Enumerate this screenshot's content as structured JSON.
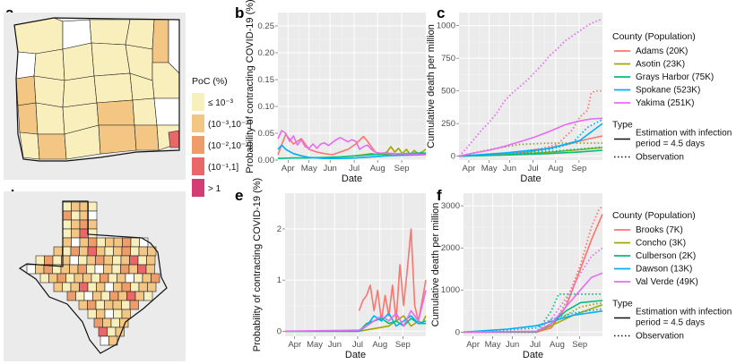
{
  "figure": {
    "panel_labels": [
      "a",
      "b",
      "c",
      "d",
      "e",
      "f"
    ],
    "map_legend": {
      "title": "PoC (%)",
      "items": [
        {
          "label": "≤ 10⁻³",
          "color": "#f9efbd"
        },
        {
          "label": "(10⁻³,10⁻²]",
          "color": "#f3c783"
        },
        {
          "label": "(10⁻²,10⁻¹]",
          "color": "#ef9c6b"
        },
        {
          "label": "(10⁻¹,1]",
          "color": "#ea6769"
        },
        {
          "label": "> 1",
          "color": "#d43c75"
        }
      ]
    },
    "legend_top": {
      "title": "County (Population)",
      "items": [
        {
          "label": "Adams (20K)",
          "color": "#f8766d"
        },
        {
          "label": "Asotin (23K)",
          "color": "#a3a500"
        },
        {
          "label": "Grays Harbor (75K)",
          "color": "#00bf7d"
        },
        {
          "label": "Spokane (523K)",
          "color": "#00b0f6"
        },
        {
          "label": "Yakima (251K)",
          "color": "#e76bf3"
        }
      ],
      "type_title": "Type",
      "type_items": [
        "Estimation with infection",
        "period = 4.5 days",
        "Observation"
      ]
    },
    "legend_bottom": {
      "title": "County (Population)",
      "items": [
        {
          "label": "Brooks (7K)",
          "color": "#f8766d"
        },
        {
          "label": "Concho (3K)",
          "color": "#a3a500"
        },
        {
          "label": "Culberson (2K)",
          "color": "#00bf7d"
        },
        {
          "label": "Dawson (13K)",
          "color": "#00b0f6"
        },
        {
          "label": "Val Verde (49K)",
          "color": "#e76bf3"
        }
      ],
      "type_title": "Type",
      "type_items": [
        "Estimation with infection",
        "period = 4.5 days",
        "Observation"
      ]
    }
  },
  "chart_data": [
    {
      "panel": "b",
      "type": "line",
      "xlabel": "Date",
      "ylabel": "Probability of contracting COVID-19 (%)",
      "x_ticks": [
        "Apr",
        "May",
        "Jun",
        "Jul",
        "Aug",
        "Sep"
      ],
      "y_ticks": [
        "0.00",
        "0.05",
        "0.10",
        "0.15",
        "0.20",
        "0.25"
      ],
      "y_tick_values": [
        0,
        0.05,
        0.1,
        0.15,
        0.2,
        0.25
      ],
      "xlim": [
        0,
        190
      ],
      "ylim": [
        0,
        0.275
      ],
      "series": [
        {
          "name": "Adams (20K)",
          "color": "#f8766d",
          "style": "solid",
          "x": [
            0,
            10,
            20,
            30,
            40,
            50,
            60,
            70,
            80,
            90,
            100,
            110,
            115,
            120,
            125,
            130,
            135,
            140,
            150,
            160,
            170,
            180,
            190
          ],
          "y": [
            0.01,
            0.048,
            0.03,
            0.04,
            0.02,
            0.015,
            0.012,
            0.01,
            0.015,
            0.02,
            0.03,
            0.044,
            0.035,
            0.025,
            0.015,
            0.012,
            0.01,
            0.01,
            0.012,
            0.01,
            0.01,
            0.012,
            0.012
          ]
        },
        {
          "name": "Asotin (23K)",
          "color": "#a3a500",
          "style": "solid",
          "x": [
            100,
            110,
            120,
            130,
            140,
            145,
            150,
            155,
            160,
            165,
            170,
            175,
            180,
            185,
            190
          ],
          "y": [
            0.008,
            0.01,
            0.012,
            0.01,
            0.015,
            0.025,
            0.015,
            0.022,
            0.012,
            0.02,
            0.01,
            0.018,
            0.012,
            0.015,
            0.02
          ]
        },
        {
          "name": "Grays Harbor (75K)",
          "color": "#00bf7d",
          "style": "solid",
          "x": [
            0,
            20,
            40,
            60,
            80,
            100,
            120,
            140,
            160,
            180,
            190
          ],
          "y": [
            0.003,
            0.004,
            0.004,
            0.005,
            0.006,
            0.008,
            0.01,
            0.012,
            0.012,
            0.013,
            0.013
          ]
        },
        {
          "name": "Spokane (523K)",
          "color": "#00b0f6",
          "style": "solid",
          "x": [
            0,
            5,
            10,
            20,
            30,
            40,
            50,
            60,
            80,
            100,
            120,
            140,
            160,
            190
          ],
          "y": [
            0.02,
            0.028,
            0.02,
            0.012,
            0.008,
            0.005,
            0.004,
            0.003,
            0.003,
            0.004,
            0.006,
            0.008,
            0.009,
            0.01
          ]
        },
        {
          "name": "Yakima (251K)",
          "color": "#e76bf3",
          "style": "solid",
          "x": [
            0,
            5,
            10,
            15,
            20,
            25,
            30,
            35,
            40,
            45,
            50,
            55,
            60,
            65,
            70,
            75,
            80,
            85,
            90,
            95,
            100,
            105,
            110,
            115,
            120,
            125,
            130,
            140,
            150,
            160,
            170,
            180,
            190
          ],
          "y": [
            0.04,
            0.055,
            0.05,
            0.035,
            0.045,
            0.028,
            0.038,
            0.025,
            0.022,
            0.03,
            0.022,
            0.03,
            0.032,
            0.027,
            0.033,
            0.038,
            0.042,
            0.038,
            0.034,
            0.038,
            0.035,
            0.02,
            0.025,
            0.028,
            0.02,
            0.015,
            0.013,
            0.013,
            0.012,
            0.012,
            0.011,
            0.011,
            0.01
          ]
        }
      ]
    },
    {
      "panel": "c",
      "type": "line",
      "xlabel": "Date",
      "ylabel": "Cumulative death per million",
      "x_ticks": [
        "Apr",
        "May",
        "Jun",
        "Jul",
        "Aug",
        "Sep"
      ],
      "y_ticks": [
        "0",
        "250",
        "500",
        "750",
        "1000"
      ],
      "y_tick_values": [
        0,
        250,
        500,
        750,
        1000
      ],
      "xlim": [
        0,
        190
      ],
      "ylim": [
        -30,
        1100
      ],
      "series": [
        {
          "name": "Adams (20K)",
          "color": "#f8766d",
          "style": "solid",
          "x": [
            0,
            30,
            60,
            90,
            110,
            130,
            150,
            170,
            190
          ],
          "y": [
            0,
            8,
            18,
            30,
            50,
            75,
            100,
            130,
            155
          ]
        },
        {
          "name": "Adams (20K)",
          "color": "#f8766d",
          "style": "dotted",
          "x": [
            0,
            30,
            60,
            90,
            110,
            130,
            150,
            160,
            170,
            175,
            180,
            190
          ],
          "y": [
            0,
            10,
            20,
            40,
            60,
            90,
            200,
            300,
            350,
            480,
            500,
            500
          ]
        },
        {
          "name": "Asotin (23K)",
          "color": "#a3a500",
          "style": "solid",
          "x": [
            0,
            60,
            120,
            160,
            190
          ],
          "y": [
            0,
            10,
            30,
            50,
            65
          ]
        },
        {
          "name": "Asotin (23K)",
          "color": "#a3a500",
          "style": "dotted",
          "x": [
            0,
            40,
            80,
            120,
            160,
            190
          ],
          "y": [
            0,
            50,
            90,
            100,
            100,
            100
          ]
        },
        {
          "name": "Grays Harbor (75K)",
          "color": "#00bf7d",
          "style": "solid",
          "x": [
            0,
            60,
            120,
            160,
            190
          ],
          "y": [
            0,
            8,
            20,
            32,
            45
          ]
        },
        {
          "name": "Grays Harbor (75K)",
          "color": "#00bf7d",
          "style": "dotted",
          "x": [
            0,
            60,
            120,
            160,
            190
          ],
          "y": [
            0,
            15,
            35,
            55,
            70
          ]
        },
        {
          "name": "Spokane (523K)",
          "color": "#00b0f6",
          "style": "solid",
          "x": [
            0,
            60,
            120,
            160,
            190
          ],
          "y": [
            0,
            25,
            60,
            120,
            250
          ]
        },
        {
          "name": "Spokane (523K)",
          "color": "#00b0f6",
          "style": "dotted",
          "x": [
            0,
            60,
            120,
            150,
            170,
            190
          ],
          "y": [
            0,
            20,
            50,
            100,
            220,
            280
          ]
        },
        {
          "name": "Yakima (251K)",
          "color": "#e76bf3",
          "style": "solid",
          "x": [
            0,
            20,
            40,
            60,
            80,
            100,
            120,
            140,
            160,
            175,
            190
          ],
          "y": [
            0,
            25,
            45,
            75,
            110,
            145,
            190,
            240,
            270,
            285,
            290
          ]
        },
        {
          "name": "Yakima (251K)",
          "color": "#e76bf3",
          "style": "dotted",
          "x": [
            0,
            10,
            20,
            30,
            40,
            50,
            60,
            70,
            80,
            90,
            100,
            110,
            120,
            130,
            140,
            150,
            160,
            170,
            180,
            190
          ],
          "y": [
            0,
            60,
            130,
            200,
            260,
            330,
            420,
            480,
            530,
            580,
            640,
            700,
            770,
            820,
            880,
            920,
            960,
            1000,
            1030,
            1050
          ]
        }
      ]
    },
    {
      "panel": "e",
      "type": "line",
      "xlabel": "Date",
      "ylabel": "Probability of contracting COVID-19 (%)",
      "x_ticks": [
        "Apr",
        "May",
        "Jun",
        "Jul",
        "Aug",
        "Sep"
      ],
      "y_ticks": [
        "0",
        "1",
        "2"
      ],
      "y_tick_values": [
        0,
        1,
        2
      ],
      "xlim": [
        0,
        190
      ],
      "ylim": [
        -0.1,
        2.7
      ],
      "series": [
        {
          "name": "Brooks (7K)",
          "color": "#f8766d",
          "style": "solid",
          "x": [
            100,
            105,
            110,
            115,
            120,
            125,
            130,
            135,
            140,
            145,
            150,
            155,
            160,
            165,
            170,
            175,
            180,
            185,
            190
          ],
          "y": [
            0.4,
            0.6,
            0.7,
            0.9,
            0.4,
            0.8,
            0.2,
            0.7,
            0.3,
            0.9,
            0.2,
            1.3,
            0.5,
            1.2,
            2.0,
            0.5,
            0.2,
            0.6,
            1.0
          ]
        },
        {
          "name": "Concho (3K)",
          "color": "#a3a500",
          "style": "solid",
          "x": [
            0,
            100,
            120,
            140,
            160,
            170,
            180,
            185,
            190
          ],
          "y": [
            0,
            0,
            0.05,
            0.1,
            0.3,
            0.1,
            0.2,
            0.15,
            0.3
          ]
        },
        {
          "name": "Culberson (2K)",
          "color": "#00bf7d",
          "style": "solid",
          "x": [
            0,
            100,
            110,
            120,
            130,
            140,
            150,
            160,
            170,
            180,
            190
          ],
          "y": [
            0,
            0,
            0.15,
            0.2,
            0.25,
            0.15,
            0.2,
            0.1,
            0.25,
            0.15,
            0.15
          ]
        },
        {
          "name": "Dawson (13K)",
          "color": "#00b0f6",
          "style": "solid",
          "x": [
            0,
            100,
            110,
            120,
            130,
            140,
            150,
            160,
            170,
            180,
            190
          ],
          "y": [
            0,
            0,
            0.1,
            0.3,
            0.2,
            0.35,
            0.1,
            0.2,
            0.3,
            0.15,
            0.2
          ]
        },
        {
          "name": "Val Verde (49K)",
          "color": "#e76bf3",
          "style": "solid",
          "x": [
            0,
            100,
            110,
            120,
            130,
            140,
            150,
            160,
            170,
            180,
            190
          ],
          "y": [
            0,
            0.02,
            0.1,
            0.2,
            0.3,
            0.2,
            0.35,
            0.1,
            0.4,
            0.2,
            0.8
          ]
        }
      ]
    },
    {
      "panel": "f",
      "type": "line",
      "xlabel": "Date",
      "ylabel": "Cumulative death per million",
      "x_ticks": [
        "Apr",
        "May",
        "Jun",
        "Jul",
        "Aug",
        "Sep"
      ],
      "y_ticks": [
        "0",
        "1000",
        "2000",
        "3000"
      ],
      "y_tick_values": [
        0,
        1000,
        2000,
        3000
      ],
      "xlim": [
        0,
        190
      ],
      "ylim": [
        -100,
        3300
      ],
      "series": [
        {
          "name": "Brooks (7K)",
          "color": "#f8766d",
          "style": "solid",
          "x": [
            0,
            60,
            100,
            120,
            140,
            160,
            175,
            190
          ],
          "y": [
            0,
            0,
            0,
            100,
            600,
            1500,
            2200,
            2800
          ]
        },
        {
          "name": "Brooks (7K)",
          "color": "#f8766d",
          "style": "dotted",
          "x": [
            0,
            100,
            120,
            140,
            160,
            175,
            185,
            190
          ],
          "y": [
            0,
            0,
            100,
            700,
            1600,
            2500,
            2900,
            3000
          ]
        },
        {
          "name": "Concho (3K)",
          "color": "#a3a500",
          "style": "solid",
          "x": [
            0,
            100,
            120,
            150,
            190
          ],
          "y": [
            0,
            10,
            150,
            400,
            650
          ]
        },
        {
          "name": "Concho (3K)",
          "color": "#a3a500",
          "style": "dotted",
          "x": [
            0,
            100,
            130,
            160,
            190
          ],
          "y": [
            0,
            0,
            300,
            600,
            700
          ]
        },
        {
          "name": "Culberson (2K)",
          "color": "#00bf7d",
          "style": "solid",
          "x": [
            0,
            100,
            120,
            140,
            160,
            190
          ],
          "y": [
            0,
            10,
            200,
            500,
            700,
            750
          ]
        },
        {
          "name": "Culberson (2K)",
          "color": "#00bf7d",
          "style": "dotted",
          "x": [
            0,
            100,
            120,
            130,
            160,
            190
          ],
          "y": [
            0,
            0,
            500,
            900,
            900,
            900
          ]
        },
        {
          "name": "Dawson (13K)",
          "color": "#00b0f6",
          "style": "solid",
          "x": [
            0,
            60,
            100,
            120,
            150,
            190
          ],
          "y": [
            0,
            70,
            150,
            250,
            400,
            500
          ]
        },
        {
          "name": "Dawson (13K)",
          "color": "#00b0f6",
          "style": "dotted",
          "x": [
            0,
            60,
            100,
            120,
            150,
            190
          ],
          "y": [
            0,
            50,
            100,
            300,
            450,
            550
          ]
        },
        {
          "name": "Val Verde (49K)",
          "color": "#e76bf3",
          "style": "solid",
          "x": [
            0,
            100,
            120,
            140,
            160,
            175,
            190
          ],
          "y": [
            0,
            20,
            200,
            600,
            1000,
            1300,
            1400
          ]
        },
        {
          "name": "Val Verde (49K)",
          "color": "#e76bf3",
          "style": "dotted",
          "x": [
            0,
            100,
            120,
            140,
            160,
            175,
            190
          ],
          "y": [
            0,
            20,
            300,
            800,
            1400,
            1800,
            2000
          ]
        }
      ]
    }
  ]
}
